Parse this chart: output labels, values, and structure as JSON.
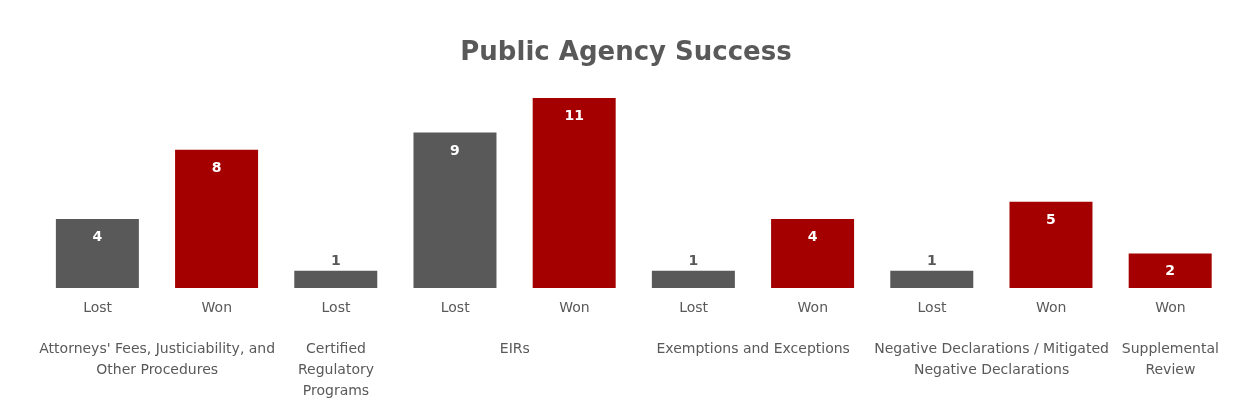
{
  "chart_data": {
    "type": "bar",
    "title": "Public Agency Success",
    "categories": [
      "Lost",
      "Won",
      "Lost",
      "Lost",
      "Won",
      "Lost",
      "Won",
      "Lost",
      "Won",
      "Won"
    ],
    "values": [
      4,
      8,
      1,
      9,
      11,
      1,
      4,
      1,
      5,
      2
    ],
    "colors": [
      "#595959",
      "#a50000",
      "#595959",
      "#595959",
      "#a50000",
      "#595959",
      "#a50000",
      "#595959",
      "#a50000",
      "#a50000"
    ],
    "data_labels": true,
    "annotations": [
      "Attorneys' Fees, Justiciability, and Other Procedures",
      "Certified Regulatory Programs",
      "EIRs",
      "Exemptions and Exceptions",
      "Negative Declarations / Mitigated Negative Declarations",
      "Supplemental Review"
    ]
  }
}
